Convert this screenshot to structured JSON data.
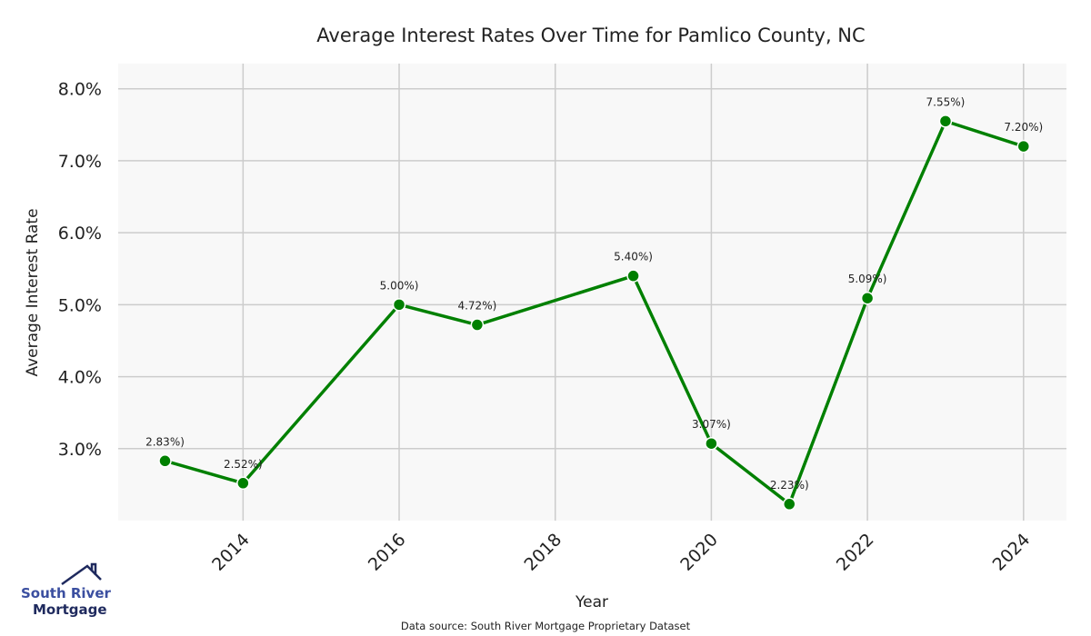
{
  "chart_data": {
    "type": "line",
    "title": "Average Interest Rates Over Time for Pamlico County, NC",
    "xlabel": "Year",
    "ylabel": "Average Interest Rate",
    "x": [
      2013,
      2014,
      2016,
      2017,
      2019,
      2020,
      2021,
      2022,
      2023,
      2024
    ],
    "series": [
      {
        "name": "Average Interest Rate",
        "values": [
          2.83,
          2.52,
          5.0,
          4.72,
          5.4,
          3.07,
          2.23,
          5.09,
          7.55,
          7.2
        ]
      }
    ],
    "data_labels": [
      "2.83%)",
      "2.52%)",
      "5.00%)",
      "4.72%)",
      "5.40%)",
      "3.07%)",
      "2.23%)",
      "5.09%)",
      "7.55%)",
      "7.20%)"
    ],
    "x_ticks": [
      "2014",
      "2016",
      "2018",
      "2020",
      "2022",
      "2024"
    ],
    "y_ticks": [
      "3.0%",
      "4.0%",
      "5.0%",
      "6.0%",
      "7.0%",
      "8.0%"
    ],
    "y_tick_values": [
      3,
      4,
      5,
      6,
      7,
      8
    ],
    "x_tick_values": [
      2014,
      2016,
      2018,
      2020,
      2022,
      2024
    ],
    "xlim": [
      2012.4,
      2024.55
    ],
    "ylim": [
      2.0,
      8.35
    ],
    "grid": true,
    "line_color": "#008000",
    "background": "#f8f8f8"
  },
  "footer": {
    "source": "Data source: South River Mortgage Proprietary Dataset",
    "logo_line1": "South River",
    "logo_line2": "Mortgage"
  }
}
